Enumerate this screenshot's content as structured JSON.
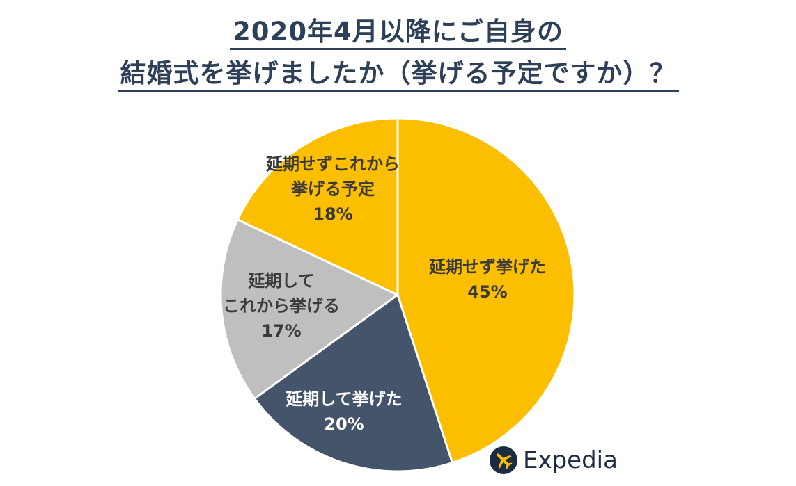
{
  "title": {
    "line1": "2020年4月以降にご自身の",
    "line2": "結婚式を挙げましたか（挙げる予定ですか）？"
  },
  "chart_data": {
    "type": "pie",
    "title": "2020年4月以降にご自身の結婚式を挙げましたか（挙げる予定ですか）？",
    "start_angle_deg": 0,
    "direction": "clockwise",
    "slices": [
      {
        "label_lines": [
          "延期せず挙げた"
        ],
        "value": 45,
        "value_label": "45%",
        "color": "#fbbf00",
        "text_color": "#3a3a3a"
      },
      {
        "label_lines": [
          "延期して挙げた"
        ],
        "value": 20,
        "value_label": "20%",
        "color": "#44546a",
        "text_color": "#ffffff"
      },
      {
        "label_lines": [
          "延期して",
          "これから挙げる"
        ],
        "value": 17,
        "value_label": "17%",
        "color": "#bfbfbf",
        "text_color": "#3a3a3a"
      },
      {
        "label_lines": [
          "延期せずこれから",
          "挙げる予定"
        ],
        "value": 18,
        "value_label": "18%",
        "color": "#fbbf00",
        "text_color": "#3a3a3a"
      }
    ],
    "separator_color": "#ffffff"
  },
  "logo": {
    "text": "Expedia",
    "icon": "airplane-icon",
    "color": "#1b2b44"
  }
}
